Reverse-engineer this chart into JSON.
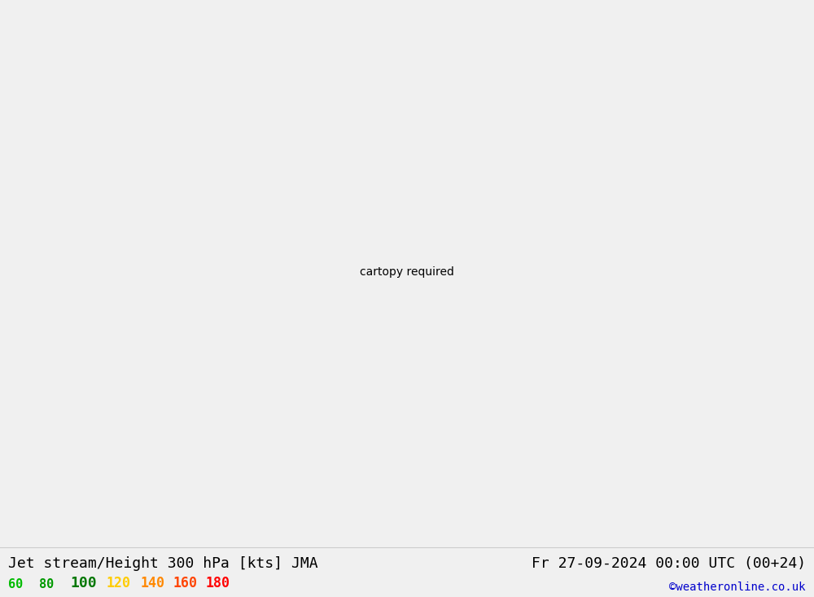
{
  "title_left": "Jet stream/Height 300 hPa [kts] JMA",
  "title_right": "Fr 27-09-2024 00:00 UTC (00+24)",
  "credit": "©weatheronline.co.uk",
  "legend_values": [
    "60",
    "80",
    "100",
    "120",
    "140",
    "160",
    "180"
  ],
  "legend_colors": [
    "#00bb00",
    "#009900",
    "#007700",
    "#ffcc00",
    "#ff8800",
    "#ff4400",
    "#ff0000"
  ],
  "bg_color": "#f0f0f0",
  "land_color": "#d8d8d8",
  "sea_color": "#f0f0f0",
  "bottom_bg": "#f0f0f0",
  "title_fontsize": 13,
  "credit_color": "#0000cc",
  "contour_color": "#000000",
  "shade_60": "#c8f0c0",
  "shade_80": "#90d880",
  "shade_100": "#50c050",
  "shade_120": "#20a020",
  "shade_yellow": "#ffd700",
  "shade_teal": "#90e0c8"
}
